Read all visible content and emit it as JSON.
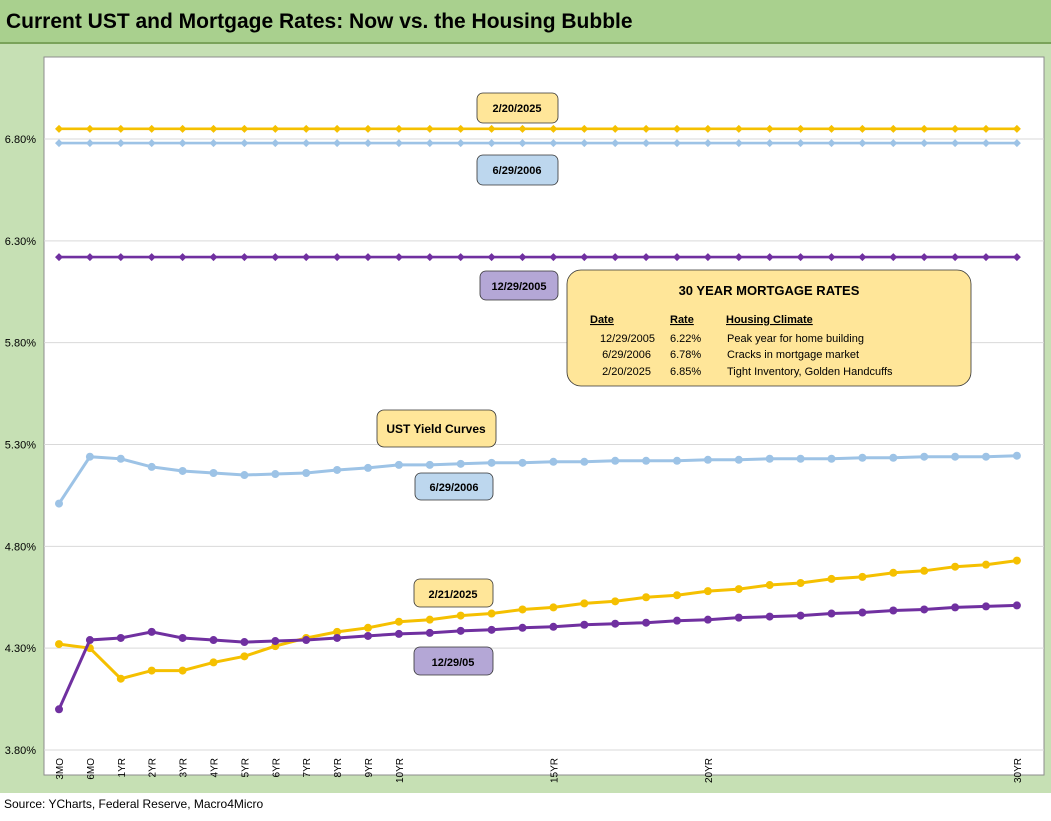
{
  "title": "Current UST and Mortgage Rates: Now vs. the Housing Bubble",
  "source": "Source: YCharts, Federal Reserve, Macro4Micro",
  "colors": {
    "gold": "#f5c000",
    "lightblue": "#9dc3e6",
    "purple": "#7030a0",
    "label_gold": "#ffe699",
    "label_blue": "#bdd7ee",
    "label_purple": "#b4a7d6",
    "grid": "#d9d9d9",
    "panel_bg": "#c6e0b4",
    "title_bg": "#a9d08e"
  },
  "chart_data": {
    "type": "line",
    "title": "Current UST and Mortgage Rates: Now vs. the Housing Bubble",
    "xlabel": "",
    "ylabel": "",
    "ylim": [
      3.8,
      6.8
    ],
    "yticks": [
      "3.80%",
      "4.30%",
      "4.80%",
      "5.30%",
      "5.80%",
      "6.30%",
      "6.80%"
    ],
    "ytick_values": [
      3.8,
      4.3,
      4.8,
      5.3,
      5.8,
      6.3,
      6.8
    ],
    "categories": [
      "3MO",
      "6MO",
      "1YR",
      "2YR",
      "3YR",
      "4YR",
      "5YR",
      "6YR",
      "7YR",
      "8YR",
      "9YR",
      "10YR",
      "11YR",
      "12YR",
      "13YR",
      "14YR",
      "15YR",
      "16YR",
      "17YR",
      "18YR",
      "19YR",
      "20YR",
      "21YR",
      "22YR",
      "23YR",
      "24YR",
      "25YR",
      "26YR",
      "27YR",
      "28YR",
      "29YR",
      "30YR"
    ],
    "xtick_labels": [
      "3MO",
      "6MO",
      "1YR",
      "2YR",
      "3YR",
      "4YR",
      "5YR",
      "6YR",
      "7YR",
      "8YR",
      "9YR",
      "10YR",
      "",
      "",
      "",
      "",
      "15YR",
      "",
      "",
      "",
      "",
      "20YR",
      "",
      "",
      "",
      "",
      "",
      "",
      "",
      "",
      "",
      "30YR"
    ],
    "grid": "horizontal",
    "series": [
      {
        "name": "2/20/2025",
        "color": "#f5c000",
        "marker": "diamond",
        "values": [
          6.85,
          6.85,
          6.85,
          6.85,
          6.85,
          6.85,
          6.85,
          6.85,
          6.85,
          6.85,
          6.85,
          6.85,
          6.85,
          6.85,
          6.85,
          6.85,
          6.85,
          6.85,
          6.85,
          6.85,
          6.85,
          6.85,
          6.85,
          6.85,
          6.85,
          6.85,
          6.85,
          6.85,
          6.85,
          6.85,
          6.85,
          6.85
        ]
      },
      {
        "name": "6/29/2006",
        "color": "#9dc3e6",
        "marker": "diamond",
        "values": [
          6.78,
          6.78,
          6.78,
          6.78,
          6.78,
          6.78,
          6.78,
          6.78,
          6.78,
          6.78,
          6.78,
          6.78,
          6.78,
          6.78,
          6.78,
          6.78,
          6.78,
          6.78,
          6.78,
          6.78,
          6.78,
          6.78,
          6.78,
          6.78,
          6.78,
          6.78,
          6.78,
          6.78,
          6.78,
          6.78,
          6.78,
          6.78
        ]
      },
      {
        "name": "12/29/2005",
        "color": "#7030a0",
        "marker": "diamond",
        "values": [
          6.22,
          6.22,
          6.22,
          6.22,
          6.22,
          6.22,
          6.22,
          6.22,
          6.22,
          6.22,
          6.22,
          6.22,
          6.22,
          6.22,
          6.22,
          6.22,
          6.22,
          6.22,
          6.22,
          6.22,
          6.22,
          6.22,
          6.22,
          6.22,
          6.22,
          6.22,
          6.22,
          6.22,
          6.22,
          6.22,
          6.22,
          6.22
        ]
      },
      {
        "name": "6/29/2006",
        "color": "#9dc3e6",
        "marker": "circle",
        "values": [
          5.01,
          5.24,
          5.23,
          5.19,
          5.17,
          5.16,
          5.15,
          5.155,
          5.16,
          5.175,
          5.185,
          5.2,
          5.2,
          5.205,
          5.21,
          5.21,
          5.215,
          5.215,
          5.22,
          5.22,
          5.22,
          5.225,
          5.225,
          5.23,
          5.23,
          5.23,
          5.235,
          5.235,
          5.24,
          5.24,
          5.24,
          5.245
        ]
      },
      {
        "name": "2/21/2025",
        "color": "#f5c000",
        "marker": "circle",
        "values": [
          4.32,
          4.3,
          4.15,
          4.19,
          4.19,
          4.23,
          4.26,
          4.31,
          4.35,
          4.38,
          4.4,
          4.43,
          4.44,
          4.46,
          4.47,
          4.49,
          4.5,
          4.52,
          4.53,
          4.55,
          4.56,
          4.58,
          4.59,
          4.61,
          4.62,
          4.64,
          4.65,
          4.67,
          4.68,
          4.7,
          4.71,
          4.73
        ]
      },
      {
        "name": "12/29/05",
        "color": "#7030a0",
        "marker": "circle",
        "values": [
          4.0,
          4.34,
          4.35,
          4.38,
          4.35,
          4.34,
          4.33,
          4.335,
          4.34,
          4.35,
          4.36,
          4.37,
          4.375,
          4.385,
          4.39,
          4.4,
          4.405,
          4.415,
          4.42,
          4.425,
          4.435,
          4.44,
          4.45,
          4.455,
          4.46,
          4.47,
          4.475,
          4.485,
          4.49,
          4.5,
          4.505,
          4.51
        ]
      }
    ]
  },
  "labels": {
    "mort_2025": "2/20/2025",
    "mort_2006": "6/29/2006",
    "mort_2005": "12/29/2005",
    "ust_title": "UST Yield Curves",
    "ust_2006": "6/29/2006",
    "ust_2025": "2/21/2025",
    "ust_2005": "12/29/05"
  },
  "mortgage_table": {
    "title": "30 YEAR MORTGAGE RATES",
    "headers": [
      "Date",
      "Rate",
      "Housing Climate"
    ],
    "rows": [
      [
        "12/29/2005",
        "6.22%",
        "Peak year for home building"
      ],
      [
        "6/29/2006",
        "6.78%",
        "Cracks in mortgage market"
      ],
      [
        "2/20/2025",
        "6.85%",
        "Tight Inventory, Golden Handcuffs"
      ]
    ]
  }
}
